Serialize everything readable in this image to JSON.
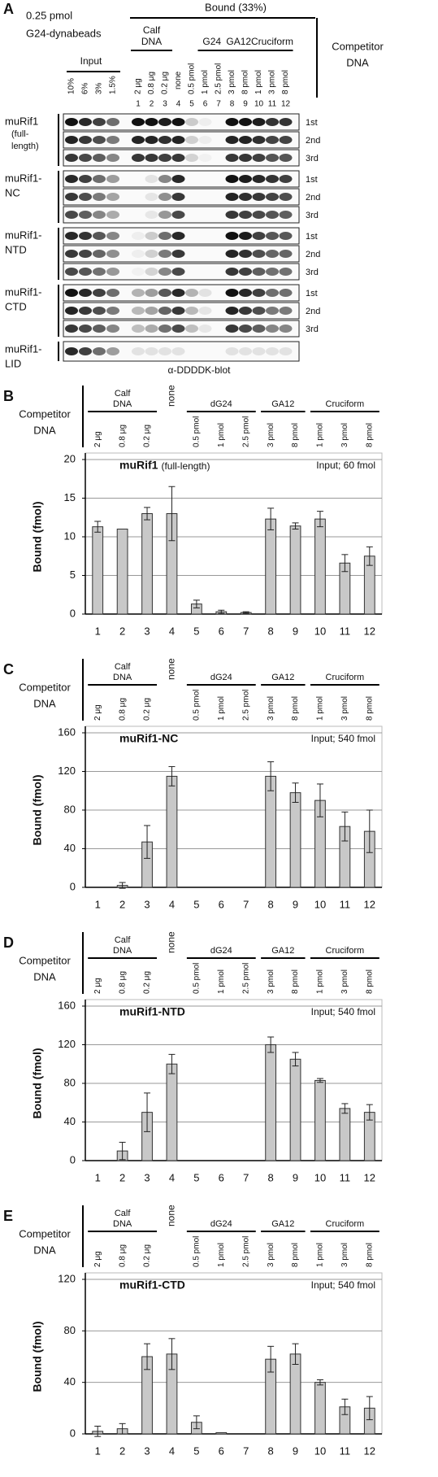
{
  "panel_a": {
    "letter": "A",
    "amount": "0.25 pmol",
    "beads": "G24-dynabeads",
    "bound": "Bound (33%)",
    "input": "Input",
    "groups": [
      [
        "Calf",
        "DNA"
      ],
      [
        "G24"
      ],
      [
        "GA12"
      ],
      [
        "Cruciform"
      ]
    ],
    "competitor": [
      "Competitor",
      "DNA"
    ],
    "input_lanes": [
      "10%",
      "6%",
      "3%",
      "1.5%"
    ],
    "lane_labels": [
      "2 μg",
      "0.8 μg",
      "0.2 μg",
      "none",
      "0.5 pmol",
      "1 pmol",
      "2.5 pmol",
      "3 pmol",
      "8 pmol",
      "1 pmol",
      "3 pmol",
      "8 pmol"
    ],
    "lane_numbers": [
      "1",
      "2",
      "3",
      "4",
      "5",
      "6",
      "7",
      "8",
      "9",
      "10",
      "11",
      "12"
    ],
    "proteins": [
      {
        "name": [
          "muRif1",
          "(full-",
          "length)"
        ],
        "rows": [
          "1st",
          "2nd",
          "3rd"
        ]
      },
      {
        "name": [
          "muRif1-",
          "NC"
        ],
        "rows": [
          "1st",
          "2nd",
          "3rd"
        ]
      },
      {
        "name": [
          "muRif1-",
          "NTD"
        ],
        "rows": [
          "1st",
          "2nd",
          "3rd"
        ]
      },
      {
        "name": [
          "muRif1-",
          "CTD"
        ],
        "rows": [
          "1st",
          "2nd",
          "3rd"
        ]
      },
      {
        "name": [
          "muRif1-",
          "LID"
        ],
        "rows": []
      }
    ],
    "blot": "α-DDDDK-blot"
  },
  "chart_data": [
    {
      "type": "bar",
      "letter": "B",
      "competitor": [
        "Competitor",
        "DNA"
      ],
      "groups": [
        [
          "Calf",
          "DNA"
        ],
        [
          "dG24"
        ],
        [
          "GA12"
        ],
        [
          "Cruciform"
        ]
      ],
      "lane_labels": [
        "2 μg",
        "0.8 μg",
        "0.2 μg",
        "none",
        "0.5 pmol",
        "1 pmol",
        "2.5 pmol",
        "3 pmol",
        "8 pmol",
        "1 pmol",
        "3 pmol",
        "8 pmol"
      ],
      "title": "muRif1",
      "title_note": "(full-length)",
      "annotation": "Input; 60 fmol",
      "ylabel": "Bound  (fmol)",
      "categories": [
        "1",
        "2",
        "3",
        "4",
        "5",
        "6",
        "7",
        "8",
        "9",
        "10",
        "11",
        "12"
      ],
      "values": [
        11.3,
        11,
        13,
        13,
        1.3,
        0.3,
        0.2,
        12.3,
        11.4,
        12.3,
        6.6,
        7.5
      ],
      "errors": [
        0.7,
        0,
        0.8,
        3.5,
        0.5,
        0.2,
        0.1,
        1.4,
        0.4,
        1,
        1.1,
        1.2
      ],
      "color": "#c8c8c8",
      "ylim": [
        0,
        20
      ],
      "yticks": [
        0,
        5,
        10,
        15,
        20
      ],
      "grid": true
    },
    {
      "type": "bar",
      "letter": "C",
      "competitor": [
        "Competitor",
        "DNA"
      ],
      "groups": [
        [
          "Calf",
          "DNA"
        ],
        [
          "dG24"
        ],
        [
          "GA12"
        ],
        [
          "Cruciform"
        ]
      ],
      "lane_labels": [
        "2 μg",
        "0.8 μg",
        "0.2 μg",
        "none",
        "0.5 pmol",
        "1 pmol",
        "2.5 pmol",
        "3 pmol",
        "8 pmol",
        "1 pmol",
        "3 pmol",
        "8 pmol"
      ],
      "title": "muRif1-NC",
      "annotation": "Input;  540 fmol",
      "ylabel": "Bound  (fmol)",
      "categories": [
        "1",
        "2",
        "3",
        "4",
        "5",
        "6",
        "7",
        "8",
        "9",
        "10",
        "11",
        "12"
      ],
      "values": [
        0,
        2,
        47,
        115,
        0,
        0,
        0,
        115,
        98,
        90,
        63,
        58
      ],
      "errors": [
        0,
        3,
        17,
        10,
        0,
        0,
        0,
        15,
        10,
        17,
        15,
        22
      ],
      "color": "#c8c8c8",
      "ylim": [
        0,
        160
      ],
      "yticks": [
        0,
        40,
        80,
        120,
        160
      ],
      "grid": true
    },
    {
      "type": "bar",
      "letter": "D",
      "competitor": [
        "Competitor",
        "DNA"
      ],
      "groups": [
        [
          "Calf",
          "DNA"
        ],
        [
          "dG24"
        ],
        [
          "GA12"
        ],
        [
          "Cruciform"
        ]
      ],
      "lane_labels": [
        "2 μg",
        "0.8 μg",
        "0.2 μg",
        "none",
        "0.5 pmol",
        "1 pmol",
        "2.5 pmol",
        "3 pmol",
        "8 pmol",
        "1 pmol",
        "3 pmol",
        "8 pmol"
      ],
      "title": "muRif1-NTD",
      "annotation": "Input; 540 fmol",
      "ylabel": "Bound  (fmol)",
      "categories": [
        "1",
        "2",
        "3",
        "4",
        "5",
        "6",
        "7",
        "8",
        "9",
        "10",
        "11",
        "12"
      ],
      "values": [
        0,
        10,
        50,
        100,
        0,
        0,
        0,
        120,
        105,
        83,
        54,
        50
      ],
      "errors": [
        0,
        9,
        20,
        10,
        0,
        0,
        0,
        8,
        7,
        2,
        5,
        8
      ],
      "color": "#c8c8c8",
      "ylim": [
        0,
        160
      ],
      "yticks": [
        0,
        40,
        80,
        120,
        160
      ],
      "grid": true
    },
    {
      "type": "bar",
      "letter": "E",
      "competitor": [
        "Competitor",
        "DNA"
      ],
      "groups": [
        [
          "Calf",
          "DNA"
        ],
        [
          "dG24"
        ],
        [
          "GA12"
        ],
        [
          "Cruciform"
        ]
      ],
      "lane_labels": [
        "2 μg",
        "0.8 μg",
        "0.2 μg",
        "none",
        "0.5 pmol",
        "1 pmol",
        "2.5 pmol",
        "3 pmol",
        "8 pmol",
        "1 pmol",
        "3 pmol",
        "8 pmol"
      ],
      "title": "muRif1-CTD",
      "annotation": "Input; 540 fmol",
      "ylabel": "Bound  (fmol)",
      "categories": [
        "1",
        "2",
        "3",
        "4",
        "5",
        "6",
        "7",
        "8",
        "9",
        "10",
        "11",
        "12"
      ],
      "values": [
        2,
        4,
        60,
        62,
        9,
        1,
        0,
        58,
        62,
        40,
        21,
        20
      ],
      "errors": [
        4,
        4,
        10,
        12,
        5,
        0,
        0,
        10,
        8,
        2,
        6,
        9
      ],
      "color": "#c8c8c8",
      "ylim": [
        0,
        120
      ],
      "yticks": [
        0,
        40,
        80,
        120
      ],
      "grid": true
    }
  ]
}
